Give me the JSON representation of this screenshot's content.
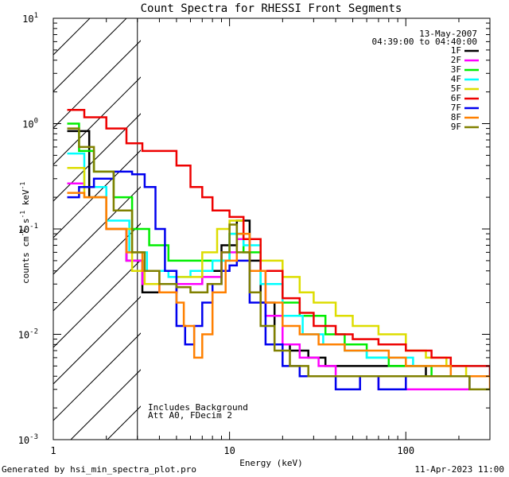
{
  "chart_data": {
    "type": "line",
    "title": "Count Spectra for RHESSI Front Segments",
    "xlabel": "Energy (keV)",
    "ylabel": "counts cm^-2 s^-1 keV^-1",
    "xscale": "log",
    "yscale": "log",
    "xlim": [
      1,
      300
    ],
    "ylim": [
      0.001,
      10
    ],
    "x_ticks": [
      {
        "value": 1,
        "label": "1"
      },
      {
        "value": 10,
        "label": "10"
      },
      {
        "value": 100,
        "label": "100"
      }
    ],
    "y_ticks": [
      {
        "value": 0.001,
        "mantissa": "10",
        "exp": "-3"
      },
      {
        "value": 0.01,
        "mantissa": "10",
        "exp": "-2"
      },
      {
        "value": 0.1,
        "mantissa": "10",
        "exp": "-1"
      },
      {
        "value": 1,
        "mantissa": "10",
        "exp": "0"
      },
      {
        "value": 10,
        "mantissa": "10",
        "exp": "1"
      }
    ],
    "shaded_region": {
      "x_from": 1,
      "x_to": 3,
      "style": "hatched"
    },
    "annotations": {
      "date": "13-May-2007",
      "time_range": "04:39:00 to 04:40:00",
      "background_note": "Includes Background",
      "attenuator_note": "Att A0, FDecim 2"
    },
    "legend": [
      {
        "name": "1F",
        "color": "#000000"
      },
      {
        "name": "2F",
        "color": "#ff00ff"
      },
      {
        "name": "3F",
        "color": "#00ee00"
      },
      {
        "name": "4F",
        "color": "#00ffff"
      },
      {
        "name": "5F",
        "color": "#dddd00"
      },
      {
        "name": "6F",
        "color": "#ee0000"
      },
      {
        "name": "7F",
        "color": "#0000ee"
      },
      {
        "name": "8F",
        "color": "#ff8000"
      },
      {
        "name": "9F",
        "color": "#808000"
      }
    ],
    "series": [
      {
        "name": "1F",
        "color": "#000000",
        "points": [
          [
            1.2,
            0.85
          ],
          [
            1.6,
            0.2
          ],
          [
            2,
            0.1
          ],
          [
            2.6,
            0.05
          ],
          [
            3.2,
            0.025
          ],
          [
            4,
            0.025
          ],
          [
            5,
            0.03
          ],
          [
            7,
            0.04
          ],
          [
            9,
            0.07
          ],
          [
            11,
            0.12
          ],
          [
            13,
            0.05
          ],
          [
            15,
            0.02
          ],
          [
            18,
            0.008
          ],
          [
            22,
            0.007
          ],
          [
            28,
            0.006
          ],
          [
            35,
            0.005
          ],
          [
            45,
            0.005
          ],
          [
            60,
            0.005
          ],
          [
            80,
            0.005
          ],
          [
            100,
            0.005
          ],
          [
            130,
            0.004
          ],
          [
            170,
            0.004
          ],
          [
            220,
            0.004
          ],
          [
            260,
            0.004
          ],
          [
            300,
            0.004
          ]
        ]
      },
      {
        "name": "2F",
        "color": "#ff00ff",
        "points": [
          [
            1.2,
            0.27
          ],
          [
            1.5,
            0.25
          ],
          [
            2,
            0.1
          ],
          [
            2.6,
            0.05
          ],
          [
            3.2,
            0.03
          ],
          [
            4,
            0.025
          ],
          [
            5,
            0.03
          ],
          [
            7,
            0.035
          ],
          [
            9,
            0.06
          ],
          [
            11,
            0.08
          ],
          [
            13,
            0.04
          ],
          [
            16,
            0.015
          ],
          [
            20,
            0.008
          ],
          [
            25,
            0.006
          ],
          [
            32,
            0.005
          ],
          [
            40,
            0.004
          ],
          [
            55,
            0.004
          ],
          [
            70,
            0.003
          ],
          [
            90,
            0.003
          ],
          [
            120,
            0.003
          ],
          [
            160,
            0.003
          ],
          [
            200,
            0.003
          ],
          [
            260,
            0.003
          ],
          [
            300,
            0.003
          ]
        ]
      },
      {
        "name": "3F",
        "color": "#00ee00",
        "points": [
          [
            1.2,
            1.0
          ],
          [
            1.4,
            0.55
          ],
          [
            1.7,
            0.35
          ],
          [
            2.2,
            0.2
          ],
          [
            2.8,
            0.1
          ],
          [
            3.5,
            0.07
          ],
          [
            4.5,
            0.05
          ],
          [
            6,
            0.05
          ],
          [
            8,
            0.05
          ],
          [
            10,
            0.09
          ],
          [
            12,
            0.06
          ],
          [
            15,
            0.03
          ],
          [
            20,
            0.02
          ],
          [
            25,
            0.015
          ],
          [
            35,
            0.01
          ],
          [
            45,
            0.008
          ],
          [
            60,
            0.006
          ],
          [
            80,
            0.005
          ],
          [
            100,
            0.005
          ],
          [
            140,
            0.004
          ],
          [
            180,
            0.004
          ],
          [
            230,
            0.004
          ],
          [
            300,
            0.004
          ]
        ]
      },
      {
        "name": "4F",
        "color": "#00ffff",
        "points": [
          [
            1.2,
            0.52
          ],
          [
            1.5,
            0.25
          ],
          [
            2,
            0.12
          ],
          [
            2.7,
            0.06
          ],
          [
            3.4,
            0.04
          ],
          [
            4.5,
            0.035
          ],
          [
            6,
            0.04
          ],
          [
            8,
            0.05
          ],
          [
            10,
            0.09
          ],
          [
            12,
            0.07
          ],
          [
            15,
            0.03
          ],
          [
            20,
            0.015
          ],
          [
            26,
            0.01
          ],
          [
            34,
            0.008
          ],
          [
            45,
            0.007
          ],
          [
            60,
            0.006
          ],
          [
            80,
            0.006
          ],
          [
            110,
            0.005
          ],
          [
            150,
            0.005
          ],
          [
            200,
            0.005
          ],
          [
            260,
            0.005
          ],
          [
            300,
            0.004
          ]
        ]
      },
      {
        "name": "5F",
        "color": "#dddd00",
        "points": [
          [
            1.2,
            0.38
          ],
          [
            1.5,
            0.2
          ],
          [
            2,
            0.1
          ],
          [
            2.8,
            0.04
          ],
          [
            3.3,
            0.03
          ],
          [
            4,
            0.03
          ],
          [
            5,
            0.035
          ],
          [
            7,
            0.06
          ],
          [
            8.5,
            0.1
          ],
          [
            10,
            0.12
          ],
          [
            12,
            0.08
          ],
          [
            15,
            0.05
          ],
          [
            20,
            0.035
          ],
          [
            25,
            0.025
          ],
          [
            30,
            0.02
          ],
          [
            40,
            0.015
          ],
          [
            50,
            0.012
          ],
          [
            70,
            0.01
          ],
          [
            100,
            0.007
          ],
          [
            130,
            0.006
          ],
          [
            170,
            0.005
          ],
          [
            220,
            0.004
          ],
          [
            300,
            0.004
          ]
        ]
      },
      {
        "name": "6F",
        "color": "#ee0000",
        "points": [
          [
            1.2,
            1.35
          ],
          [
            1.5,
            1.15
          ],
          [
            2,
            0.9
          ],
          [
            2.6,
            0.65
          ],
          [
            3.2,
            0.55
          ],
          [
            4,
            0.55
          ],
          [
            5,
            0.4
          ],
          [
            6,
            0.25
          ],
          [
            7,
            0.2
          ],
          [
            8,
            0.15
          ],
          [
            9,
            0.15
          ],
          [
            10,
            0.13
          ],
          [
            12,
            0.08
          ],
          [
            15,
            0.04
          ],
          [
            20,
            0.022
          ],
          [
            25,
            0.016
          ],
          [
            30,
            0.012
          ],
          [
            40,
            0.01
          ],
          [
            50,
            0.009
          ],
          [
            70,
            0.008
          ],
          [
            100,
            0.007
          ],
          [
            140,
            0.006
          ],
          [
            180,
            0.005
          ],
          [
            230,
            0.005
          ],
          [
            300,
            0.004
          ]
        ]
      },
      {
        "name": "7F",
        "color": "#0000ee",
        "points": [
          [
            1.2,
            0.2
          ],
          [
            1.4,
            0.25
          ],
          [
            1.7,
            0.3
          ],
          [
            2.2,
            0.35
          ],
          [
            2.8,
            0.33
          ],
          [
            3.3,
            0.25
          ],
          [
            3.8,
            0.1
          ],
          [
            4.3,
            0.04
          ],
          [
            5,
            0.012
          ],
          [
            5.6,
            0.008
          ],
          [
            6.3,
            0.012
          ],
          [
            7,
            0.02
          ],
          [
            8,
            0.03
          ],
          [
            9,
            0.04
          ],
          [
            10,
            0.045
          ],
          [
            11,
            0.05
          ],
          [
            13,
            0.02
          ],
          [
            16,
            0.008
          ],
          [
            20,
            0.005
          ],
          [
            25,
            0.004
          ],
          [
            30,
            0.004
          ],
          [
            40,
            0.003
          ],
          [
            55,
            0.004
          ],
          [
            70,
            0.003
          ],
          [
            100,
            0.004
          ],
          [
            140,
            0.004
          ],
          [
            180,
            0.004
          ],
          [
            230,
            0.003
          ],
          [
            300,
            0.003
          ]
        ]
      },
      {
        "name": "8F",
        "color": "#ff8000",
        "points": [
          [
            1.2,
            0.22
          ],
          [
            1.5,
            0.2
          ],
          [
            2,
            0.1
          ],
          [
            2.6,
            0.06
          ],
          [
            3.2,
            0.04
          ],
          [
            4,
            0.025
          ],
          [
            5,
            0.02
          ],
          [
            5.5,
            0.012
          ],
          [
            6.3,
            0.006
          ],
          [
            7,
            0.01
          ],
          [
            8,
            0.025
          ],
          [
            9.5,
            0.05
          ],
          [
            11,
            0.09
          ],
          [
            13,
            0.04
          ],
          [
            16,
            0.02
          ],
          [
            20,
            0.012
          ],
          [
            25,
            0.01
          ],
          [
            32,
            0.008
          ],
          [
            45,
            0.007
          ],
          [
            60,
            0.007
          ],
          [
            80,
            0.006
          ],
          [
            100,
            0.005
          ],
          [
            140,
            0.005
          ],
          [
            180,
            0.004
          ],
          [
            230,
            0.004
          ],
          [
            300,
            0.003
          ]
        ]
      },
      {
        "name": "9F",
        "color": "#808000",
        "points": [
          [
            1.2,
            0.9
          ],
          [
            1.4,
            0.6
          ],
          [
            1.7,
            0.35
          ],
          [
            2.2,
            0.15
          ],
          [
            2.8,
            0.06
          ],
          [
            3.3,
            0.04
          ],
          [
            4,
            0.03
          ],
          [
            5,
            0.028
          ],
          [
            6,
            0.025
          ],
          [
            7.5,
            0.03
          ],
          [
            9,
            0.06
          ],
          [
            10,
            0.11
          ],
          [
            11,
            0.06
          ],
          [
            13,
            0.025
          ],
          [
            15,
            0.012
          ],
          [
            18,
            0.007
          ],
          [
            22,
            0.005
          ],
          [
            28,
            0.004
          ],
          [
            35,
            0.004
          ],
          [
            45,
            0.004
          ],
          [
            60,
            0.004
          ],
          [
            80,
            0.004
          ],
          [
            100,
            0.004
          ],
          [
            140,
            0.004
          ],
          [
            180,
            0.004
          ],
          [
            230,
            0.003
          ],
          [
            300,
            0.003
          ]
        ]
      }
    ]
  },
  "footer": {
    "generator": "Generated by hsi_min_spectra_plot.pro",
    "timestamp": "11-Apr-2023 11:00"
  }
}
